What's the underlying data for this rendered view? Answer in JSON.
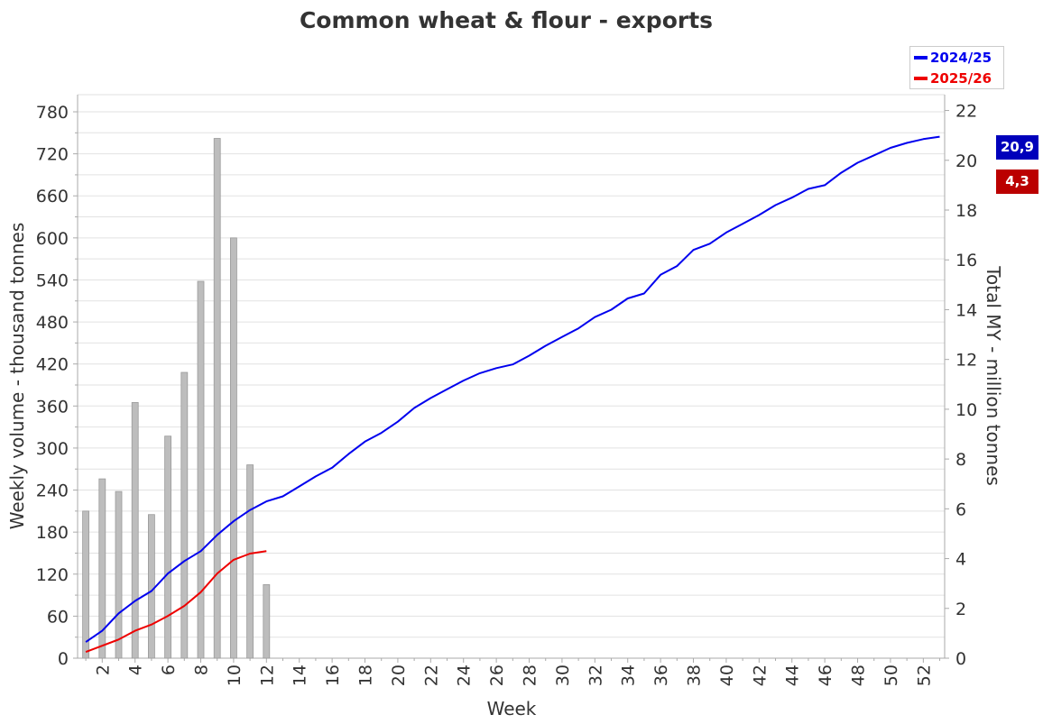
{
  "chart_data": {
    "type": "bar+line",
    "title": "Common wheat & flour - exports",
    "xlabel": "Week",
    "ylabel_left": "Weekly volume - thousand tonnes",
    "ylabel_right": "Total MY - million tonnes",
    "x_ticks": [
      2,
      4,
      6,
      8,
      10,
      12,
      14,
      16,
      18,
      20,
      22,
      24,
      26,
      28,
      30,
      32,
      34,
      36,
      38,
      40,
      42,
      44,
      46,
      48,
      50,
      52
    ],
    "x_range": [
      0.5,
      53.3
    ],
    "y_left_ticks": [
      0,
      60,
      120,
      180,
      240,
      300,
      360,
      420,
      480,
      540,
      600,
      660,
      720,
      780
    ],
    "y_left_range": [
      0,
      780
    ],
    "y_right_ticks": [
      0,
      2,
      4,
      6,
      8,
      10,
      12,
      14,
      16,
      18,
      20,
      22
    ],
    "y_right_range": [
      0,
      22.6
    ],
    "grid": true,
    "legend_position": "top-right",
    "weekly_bars": {
      "name": "",
      "axis": "left",
      "color": "#bfbfbf",
      "weeks": [
        1,
        2,
        3,
        4,
        5,
        6,
        7,
        8,
        9,
        10,
        11,
        12
      ],
      "values": [
        210,
        256,
        238,
        365,
        205,
        317,
        408,
        538,
        742,
        600,
        276,
        105
      ]
    },
    "series": [
      {
        "name": "2024/25",
        "axis": "right",
        "color": "#0000ee",
        "weeks": [
          1,
          2,
          3,
          4,
          5,
          6,
          7,
          8,
          9,
          10,
          11,
          12,
          13,
          14,
          15,
          16,
          17,
          18,
          19,
          20,
          21,
          22,
          23,
          24,
          25,
          26,
          27,
          28,
          29,
          30,
          31,
          32,
          33,
          34,
          35,
          36,
          37,
          38,
          39,
          40,
          41,
          42,
          43,
          44,
          45,
          46,
          47,
          48,
          49,
          50,
          51,
          52,
          53
        ],
        "values": [
          0.65,
          1.1,
          1.8,
          2.3,
          2.7,
          3.4,
          3.9,
          4.3,
          4.95,
          5.5,
          5.95,
          6.3,
          6.5,
          6.9,
          7.3,
          7.65,
          8.2,
          8.7,
          9.05,
          9.5,
          10.05,
          10.45,
          10.8,
          11.15,
          11.45,
          11.65,
          11.8,
          12.15,
          12.55,
          12.9,
          13.25,
          13.7,
          14.0,
          14.45,
          14.65,
          15.4,
          15.75,
          16.4,
          16.65,
          17.1,
          17.45,
          17.8,
          18.2,
          18.5,
          18.85,
          19.0,
          19.5,
          19.9,
          20.2,
          20.5,
          20.7,
          20.85,
          20.95
        ]
      },
      {
        "name": "2025/26",
        "axis": "right",
        "color": "#ee0000",
        "weeks": [
          1,
          2,
          3,
          4,
          5,
          6,
          7,
          8,
          9,
          10,
          11,
          12
        ],
        "values": [
          0.25,
          0.5,
          0.75,
          1.1,
          1.35,
          1.7,
          2.1,
          2.65,
          3.4,
          3.95,
          4.2,
          4.3
        ]
      }
    ],
    "end_badges": [
      {
        "text": "20,9",
        "color": "#0000bb"
      },
      {
        "text": "4,3",
        "color": "#bb0000"
      }
    ]
  }
}
